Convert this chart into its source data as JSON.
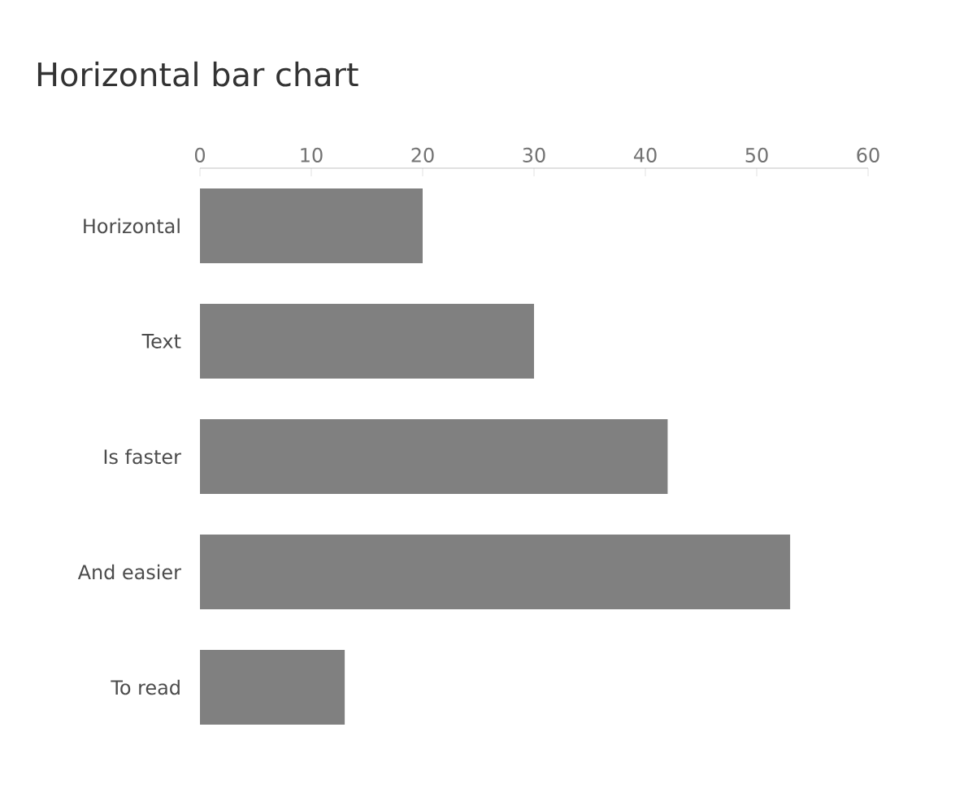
{
  "chart_data": {
    "type": "bar",
    "orientation": "horizontal",
    "title": "Horizontal bar chart",
    "categories": [
      "Horizontal",
      "Text",
      "Is faster",
      "And easier",
      "To read"
    ],
    "values": [
      20,
      30,
      42,
      53,
      13
    ],
    "color": "#808080",
    "xlim": [
      0,
      60
    ],
    "xticks": [
      0,
      10,
      20,
      30,
      40,
      50,
      60
    ],
    "grid": false
  }
}
